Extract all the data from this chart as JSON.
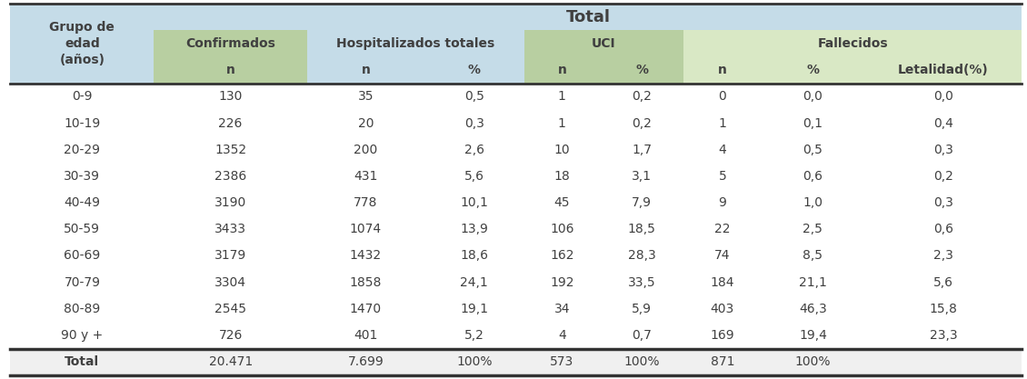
{
  "title_row": "Total",
  "age_groups": [
    "0-9",
    "10-19",
    "20-29",
    "30-39",
    "40-49",
    "50-59",
    "60-69",
    "70-79",
    "80-89",
    "90 y +"
  ],
  "confirmados_n": [
    "130",
    "226",
    "1352",
    "2386",
    "3190",
    "3433",
    "3179",
    "3304",
    "2545",
    "726"
  ],
  "hosp_n": [
    "35",
    "20",
    "200",
    "431",
    "778",
    "1074",
    "1432",
    "1858",
    "1470",
    "401"
  ],
  "hosp_pct": [
    "0,5",
    "0,3",
    "2,6",
    "5,6",
    "10,1",
    "13,9",
    "18,6",
    "24,1",
    "19,1",
    "5,2"
  ],
  "uci_n": [
    "1",
    "1",
    "10",
    "18",
    "45",
    "106",
    "162",
    "192",
    "34",
    "4"
  ],
  "uci_pct": [
    "0,2",
    "0,2",
    "1,7",
    "3,1",
    "7,9",
    "18,5",
    "28,3",
    "33,5",
    "5,9",
    "0,7"
  ],
  "fall_n": [
    "0",
    "1",
    "4",
    "5",
    "9",
    "22",
    "74",
    "184",
    "403",
    "169"
  ],
  "fall_pct": [
    "0,0",
    "0,1",
    "0,5",
    "0,6",
    "1,0",
    "2,5",
    "8,5",
    "21,1",
    "46,3",
    "19,4"
  ],
  "letalidad": [
    "0,0",
    "0,4",
    "0,3",
    "0,2",
    "0,3",
    "0,6",
    "2,3",
    "5,6",
    "15,8",
    "23,3"
  ],
  "total_row": [
    "Total",
    "20.471",
    "7.699",
    "100%",
    "573",
    "100%",
    "871",
    "100%",
    ""
  ],
  "color_blue_light": "#c5dce8",
  "color_green_light": "#b8cfa1",
  "color_fall": "#d9e8c5",
  "color_total_row": "#f0f0f0",
  "text_color": "#404040"
}
